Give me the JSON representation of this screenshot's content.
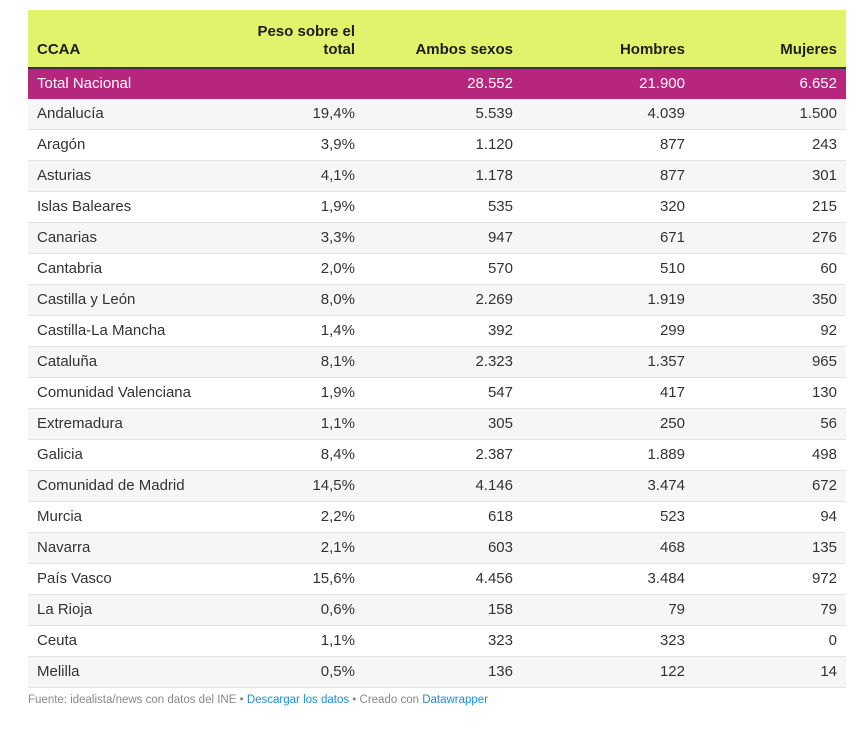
{
  "table": {
    "columns": [
      "CCAA",
      "Peso sobre el total",
      "Ambos sexos",
      "Hombres",
      "Mujeres"
    ],
    "header": {
      "ccaa": "CCAA",
      "peso_line1": "Peso sobre el",
      "peso_line2": "total",
      "ambos": "Ambos sexos",
      "hombres": "Hombres",
      "mujeres": "Mujeres"
    },
    "total_row": {
      "ccaa": "Total Nacional",
      "peso": "",
      "ambos": "28.552",
      "hombres": "21.900",
      "mujeres": "6.652"
    },
    "rows": [
      {
        "ccaa": "Andalucía",
        "peso": "19,4%",
        "ambos": "5.539",
        "hombres": "4.039",
        "mujeres": "1.500"
      },
      {
        "ccaa": "Aragón",
        "peso": "3,9%",
        "ambos": "1.120",
        "hombres": "877",
        "mujeres": "243"
      },
      {
        "ccaa": "Asturias",
        "peso": "4,1%",
        "ambos": "1.178",
        "hombres": "877",
        "mujeres": "301"
      },
      {
        "ccaa": "Islas Baleares",
        "peso": "1,9%",
        "ambos": "535",
        "hombres": "320",
        "mujeres": "215"
      },
      {
        "ccaa": "Canarias",
        "peso": "3,3%",
        "ambos": "947",
        "hombres": "671",
        "mujeres": "276"
      },
      {
        "ccaa": "Cantabria",
        "peso": "2,0%",
        "ambos": "570",
        "hombres": "510",
        "mujeres": "60"
      },
      {
        "ccaa": "Castilla y León",
        "peso": "8,0%",
        "ambos": "2.269",
        "hombres": "1.919",
        "mujeres": "350"
      },
      {
        "ccaa": "Castilla-La Mancha",
        "peso": "1,4%",
        "ambos": "392",
        "hombres": "299",
        "mujeres": "92"
      },
      {
        "ccaa": "Cataluña",
        "peso": "8,1%",
        "ambos": "2.323",
        "hombres": "1.357",
        "mujeres": "965"
      },
      {
        "ccaa": "Comunidad Valenciana",
        "peso": "1,9%",
        "ambos": "547",
        "hombres": "417",
        "mujeres": "130"
      },
      {
        "ccaa": "Extremadura",
        "peso": "1,1%",
        "ambos": "305",
        "hombres": "250",
        "mujeres": "56"
      },
      {
        "ccaa": "Galicia",
        "peso": "8,4%",
        "ambos": "2.387",
        "hombres": "1.889",
        "mujeres": "498"
      },
      {
        "ccaa": "Comunidad de Madrid",
        "peso": "14,5%",
        "ambos": "4.146",
        "hombres": "3.474",
        "mujeres": "672"
      },
      {
        "ccaa": "Murcia",
        "peso": "2,2%",
        "ambos": "618",
        "hombres": "523",
        "mujeres": "94"
      },
      {
        "ccaa": "Navarra",
        "peso": "2,1%",
        "ambos": "603",
        "hombres": "468",
        "mujeres": "135"
      },
      {
        "ccaa": "País Vasco",
        "peso": "15,6%",
        "ambos": "4.456",
        "hombres": "3.484",
        "mujeres": "972"
      },
      {
        "ccaa": "La Rioja",
        "peso": "0,6%",
        "ambos": "158",
        "hombres": "79",
        "mujeres": "79"
      },
      {
        "ccaa": "Ceuta",
        "peso": "1,1%",
        "ambos": "323",
        "hombres": "323",
        "mujeres": "0"
      },
      {
        "ccaa": "Melilla",
        "peso": "0,5%",
        "ambos": "136",
        "hombres": "122",
        "mujeres": "14"
      }
    ]
  },
  "colors": {
    "header_bg": "#e1f36c",
    "total_row_bg": "#b7267d",
    "link": "#1d8fd6"
  },
  "footer": {
    "source": "Fuente: idealista/news con datos del INE",
    "separator": " • ",
    "download_link": "Descargar los datos",
    "created_with": "Creado con ",
    "datawrapper_link": "Datawrapper"
  }
}
